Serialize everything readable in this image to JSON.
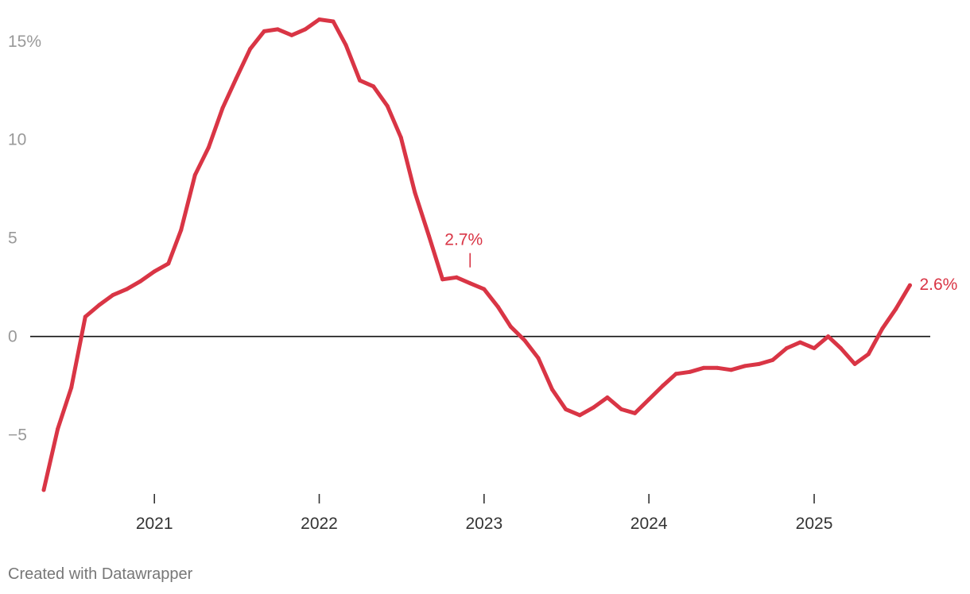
{
  "chart_data": {
    "type": "line",
    "title": "",
    "xlabel": "",
    "ylabel": "",
    "ylim": [
      -8,
      16.2
    ],
    "xlim": [
      "2020-04-01",
      "2025-09-15"
    ],
    "grid": false,
    "zero_line": true,
    "y_ticks": [
      {
        "value": 15,
        "label": "15%"
      },
      {
        "value": 10,
        "label": "10"
      },
      {
        "value": 5,
        "label": "5"
      },
      {
        "value": 0,
        "label": "0"
      },
      {
        "value": -5,
        "label": "−5"
      }
    ],
    "x_ticks": [
      {
        "date": "2021-01-01",
        "label": "2021"
      },
      {
        "date": "2022-01-01",
        "label": "2022"
      },
      {
        "date": "2023-01-01",
        "label": "2023"
      },
      {
        "date": "2024-01-01",
        "label": "2024"
      },
      {
        "date": "2025-01-01",
        "label": "2025"
      }
    ],
    "series": [
      {
        "color": "#d93545",
        "points": [
          {
            "x": "2020-05-01",
            "y": -7.8
          },
          {
            "x": "2020-06-01",
            "y": -4.7
          },
          {
            "x": "2020-07-01",
            "y": -2.6
          },
          {
            "x": "2020-08-01",
            "y": 1.0
          },
          {
            "x": "2020-09-01",
            "y": 1.6
          },
          {
            "x": "2020-10-01",
            "y": 2.1
          },
          {
            "x": "2020-11-01",
            "y": 2.4
          },
          {
            "x": "2020-12-01",
            "y": 2.8
          },
          {
            "x": "2021-01-01",
            "y": 3.3
          },
          {
            "x": "2021-02-01",
            "y": 3.7
          },
          {
            "x": "2021-03-01",
            "y": 5.4
          },
          {
            "x": "2021-04-01",
            "y": 8.2
          },
          {
            "x": "2021-05-01",
            "y": 9.6
          },
          {
            "x": "2021-06-01",
            "y": 11.6
          },
          {
            "x": "2021-07-01",
            "y": 13.1
          },
          {
            "x": "2021-08-01",
            "y": 14.6
          },
          {
            "x": "2021-09-01",
            "y": 15.5
          },
          {
            "x": "2021-10-01",
            "y": 15.6
          },
          {
            "x": "2021-11-01",
            "y": 15.3
          },
          {
            "x": "2021-12-01",
            "y": 15.6
          },
          {
            "x": "2022-01-01",
            "y": 16.1
          },
          {
            "x": "2022-02-01",
            "y": 16.0
          },
          {
            "x": "2022-03-01",
            "y": 14.8
          },
          {
            "x": "2022-04-01",
            "y": 13.0
          },
          {
            "x": "2022-05-01",
            "y": 12.7
          },
          {
            "x": "2022-06-01",
            "y": 11.7
          },
          {
            "x": "2022-07-01",
            "y": 10.1
          },
          {
            "x": "2022-08-01",
            "y": 7.3
          },
          {
            "x": "2022-09-01",
            "y": 5.1
          },
          {
            "x": "2022-10-01",
            "y": 2.9
          },
          {
            "x": "2022-11-01",
            "y": 3.0
          },
          {
            "x": "2022-12-01",
            "y": 2.7
          },
          {
            "x": "2023-01-01",
            "y": 2.4
          },
          {
            "x": "2023-02-01",
            "y": 1.5
          },
          {
            "x": "2023-03-01",
            "y": 0.5
          },
          {
            "x": "2023-04-01",
            "y": -0.2
          },
          {
            "x": "2023-05-01",
            "y": -1.1
          },
          {
            "x": "2023-06-01",
            "y": -2.7
          },
          {
            "x": "2023-07-01",
            "y": -3.7
          },
          {
            "x": "2023-08-01",
            "y": -4.0
          },
          {
            "x": "2023-09-01",
            "y": -3.6
          },
          {
            "x": "2023-10-01",
            "y": -3.1
          },
          {
            "x": "2023-11-01",
            "y": -3.7
          },
          {
            "x": "2023-12-01",
            "y": -3.9
          },
          {
            "x": "2024-01-01",
            "y": -3.2
          },
          {
            "x": "2024-02-01",
            "y": -2.5
          },
          {
            "x": "2024-03-01",
            "y": -1.9
          },
          {
            "x": "2024-04-01",
            "y": -1.8
          },
          {
            "x": "2024-05-01",
            "y": -1.6
          },
          {
            "x": "2024-06-01",
            "y": -1.6
          },
          {
            "x": "2024-07-01",
            "y": -1.7
          },
          {
            "x": "2024-08-01",
            "y": -1.5
          },
          {
            "x": "2024-09-01",
            "y": -1.4
          },
          {
            "x": "2024-10-01",
            "y": -1.2
          },
          {
            "x": "2024-11-01",
            "y": -0.6
          },
          {
            "x": "2024-12-01",
            "y": -0.3
          },
          {
            "x": "2025-01-01",
            "y": -0.6
          },
          {
            "x": "2025-02-01",
            "y": 0.0
          },
          {
            "x": "2025-03-01",
            "y": -0.6
          },
          {
            "x": "2025-04-01",
            "y": -1.4
          },
          {
            "x": "2025-05-01",
            "y": -0.9
          },
          {
            "x": "2025-06-01",
            "y": 0.4
          },
          {
            "x": "2025-07-01",
            "y": 1.4
          },
          {
            "x": "2025-08-01",
            "y": 2.6
          }
        ]
      }
    ],
    "annotations": [
      {
        "x": "2022-12-01",
        "y": 2.7,
        "text": "2.7%",
        "type": "above-tick"
      },
      {
        "x": "2025-08-01",
        "y": 2.6,
        "text": "2.6%",
        "type": "end-label"
      }
    ]
  },
  "footer": {
    "credit": "Created with Datawrapper"
  }
}
